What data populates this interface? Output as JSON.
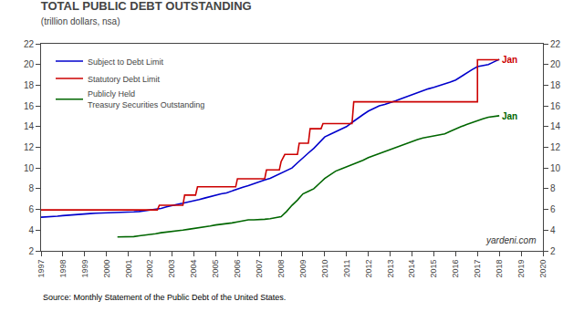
{
  "chart_data": {
    "type": "line",
    "title": "TOTAL PUBLIC DEBT OUTSTANDING",
    "subtitle": "(trillion dollars, nsa)",
    "source": "Source: Monthly Statement of the Public Debt of the United States.",
    "watermark": "yardeni.com",
    "xlim": [
      1997.0,
      2020.0
    ],
    "xticks": [
      1997,
      1998,
      1999,
      2000,
      2001,
      2002,
      2003,
      2004,
      2005,
      2006,
      2007,
      2008,
      2009,
      2010,
      2011,
      2012,
      2013,
      2014,
      2015,
      2016,
      2017,
      2018,
      2019,
      2020
    ],
    "ylim": [
      2,
      22
    ],
    "yticks": [
      2,
      4,
      6,
      8,
      10,
      12,
      14,
      16,
      18,
      20,
      22
    ],
    "y2lim": [
      2,
      22
    ],
    "y2ticks": [
      2,
      4,
      6,
      8,
      10,
      12,
      14,
      16,
      18,
      20,
      22
    ],
    "grid": false,
    "legend": "upper left",
    "annotations": [
      {
        "text": "Jan",
        "x": 2017.92,
        "y": 20.5,
        "color": "#CC0000"
      },
      {
        "text": "Jan",
        "x": 2017.92,
        "y": 15.0,
        "color": "#006600"
      }
    ],
    "series": [
      {
        "name": "Subject to Debt Limit",
        "color": "#0000CC",
        "x": [
          1997.0,
          1997.25,
          1997.5,
          1997.75,
          1998.0,
          1998.25,
          1998.5,
          1998.75,
          1999.0,
          1999.25,
          1999.5,
          1999.75,
          2000.0,
          2000.25,
          2000.5,
          2000.75,
          2001.0,
          2001.25,
          2001.5,
          2001.75,
          2002.0,
          2002.25,
          2002.5,
          2002.75,
          2003.0,
          2003.25,
          2003.5,
          2003.75,
          2004.0,
          2004.25,
          2004.5,
          2004.75,
          2005.0,
          2005.25,
          2005.5,
          2005.75,
          2006.0,
          2006.25,
          2006.5,
          2006.75,
          2007.0,
          2007.25,
          2007.5,
          2007.75,
          2008.0,
          2008.25,
          2008.5,
          2008.75,
          2009.0,
          2009.25,
          2009.5,
          2009.75,
          2010.0,
          2010.25,
          2010.5,
          2010.75,
          2011.0,
          2011.25,
          2011.5,
          2011.75,
          2012.0,
          2012.25,
          2012.5,
          2012.75,
          2013.0,
          2013.25,
          2013.5,
          2013.75,
          2014.0,
          2014.25,
          2014.5,
          2014.75,
          2015.0,
          2015.25,
          2015.5,
          2015.75,
          2016.0,
          2016.25,
          2016.5,
          2016.75,
          2017.0,
          2017.25,
          2017.5,
          2017.75,
          2018.0
        ],
        "values": [
          5.25,
          5.27,
          5.3,
          5.35,
          5.4,
          5.45,
          5.5,
          5.52,
          5.55,
          5.6,
          5.63,
          5.64,
          5.65,
          5.66,
          5.68,
          5.7,
          5.73,
          5.76,
          5.8,
          5.88,
          5.95,
          6.02,
          6.1,
          6.25,
          6.4,
          6.5,
          6.6,
          6.7,
          6.8,
          6.95,
          7.1,
          7.25,
          7.4,
          7.5,
          7.6,
          7.8,
          8.0,
          8.15,
          8.3,
          8.5,
          8.7,
          8.85,
          9.0,
          9.25,
          9.5,
          9.75,
          10.0,
          10.5,
          11.0,
          11.45,
          11.9,
          12.45,
          13.0,
          13.25,
          13.5,
          13.75,
          14.0,
          14.4,
          14.8,
          15.15,
          15.5,
          15.75,
          16.0,
          16.15,
          16.3,
          16.5,
          16.7,
          16.9,
          17.1,
          17.3,
          17.5,
          17.65,
          17.8,
          17.95,
          18.1,
          18.3,
          18.5,
          18.85,
          19.2,
          19.5,
          19.8,
          19.9,
          20.0,
          20.25,
          20.49
        ]
      },
      {
        "name": "Statutory Debt Limit",
        "color": "#CC0000",
        "x": [
          1997.0,
          1997.0,
          2002.33,
          2002.33,
          2002.42,
          2002.42,
          2003.5,
          2003.5,
          2003.58,
          2003.58,
          2004.08,
          2004.08,
          2004.17,
          2004.17,
          2005.92,
          2005.92,
          2006.0,
          2006.0,
          2007.25,
          2007.25,
          2007.33,
          2007.33,
          2007.92,
          2007.92,
          2008.0,
          2008.0,
          2008.17,
          2008.17,
          2008.75,
          2008.75,
          2008.83,
          2008.83,
          2009.25,
          2009.25,
          2009.33,
          2009.33,
          2009.83,
          2009.83,
          2009.92,
          2009.92,
          2011.25,
          2011.25,
          2011.33,
          2011.33,
          2012.0,
          2012.0,
          2013.42,
          2013.42,
          2014.0,
          2014.0,
          2017.0,
          2017.0,
          2018.0
        ],
        "values": [
          5.95,
          5.95,
          5.95,
          5.95,
          6.4,
          6.4,
          6.4,
          6.4,
          7.384,
          7.384,
          7.384,
          7.384,
          8.184,
          8.184,
          8.184,
          8.184,
          8.965,
          8.965,
          8.965,
          8.965,
          9.815,
          9.815,
          9.815,
          9.815,
          10.615,
          10.615,
          11.315,
          11.315,
          11.315,
          11.315,
          12.394,
          12.394,
          12.394,
          12.394,
          13.794,
          13.794,
          13.794,
          13.794,
          14.294,
          14.294,
          14.294,
          14.294,
          16.394,
          16.394,
          16.394,
          16.394,
          16.394,
          16.394,
          16.394,
          16.394,
          16.394,
          20.456,
          20.456
        ]
      },
      {
        "name": "Publicly Held\nTreasury Securities Outstanding",
        "color": "#006600",
        "x": [
          2000.5,
          2000.75,
          2001.0,
          2001.25,
          2001.5,
          2001.75,
          2002.0,
          2002.25,
          2002.5,
          2002.75,
          2003.0,
          2003.25,
          2003.5,
          2003.75,
          2004.0,
          2004.25,
          2004.5,
          2004.75,
          2005.0,
          2005.25,
          2005.5,
          2005.75,
          2006.0,
          2006.25,
          2006.5,
          2006.75,
          2007.0,
          2007.25,
          2007.5,
          2007.75,
          2008.0,
          2008.25,
          2008.5,
          2008.75,
          2009.0,
          2009.25,
          2009.5,
          2009.75,
          2010.0,
          2010.25,
          2010.5,
          2010.75,
          2011.0,
          2011.25,
          2011.5,
          2011.75,
          2012.0,
          2012.25,
          2012.5,
          2012.75,
          2013.0,
          2013.25,
          2013.5,
          2013.75,
          2014.0,
          2014.25,
          2014.5,
          2014.75,
          2015.0,
          2015.25,
          2015.5,
          2015.75,
          2016.0,
          2016.25,
          2016.5,
          2016.75,
          2017.0,
          2017.25,
          2017.5,
          2017.75,
          2018.0
        ],
        "values": [
          3.35,
          3.35,
          3.35,
          3.38,
          3.45,
          3.5,
          3.6,
          3.65,
          3.75,
          3.8,
          3.85,
          3.93,
          4.0,
          4.08,
          4.15,
          4.23,
          4.3,
          4.4,
          4.5,
          4.55,
          4.6,
          4.7,
          4.8,
          4.9,
          5.0,
          5.0,
          5.0,
          5.05,
          5.1,
          5.2,
          5.3,
          5.8,
          6.4,
          6.9,
          7.5,
          7.75,
          8.0,
          8.5,
          9.0,
          9.35,
          9.7,
          9.9,
          10.1,
          10.3,
          10.5,
          10.75,
          11.0,
          11.2,
          11.4,
          11.6,
          11.8,
          12.0,
          12.2,
          12.4,
          12.6,
          12.75,
          12.9,
          13.0,
          13.1,
          13.2,
          13.3,
          13.55,
          13.8,
          14.0,
          14.2,
          14.4,
          14.6,
          14.75,
          14.9,
          15.0,
          15.05
        ]
      }
    ]
  }
}
